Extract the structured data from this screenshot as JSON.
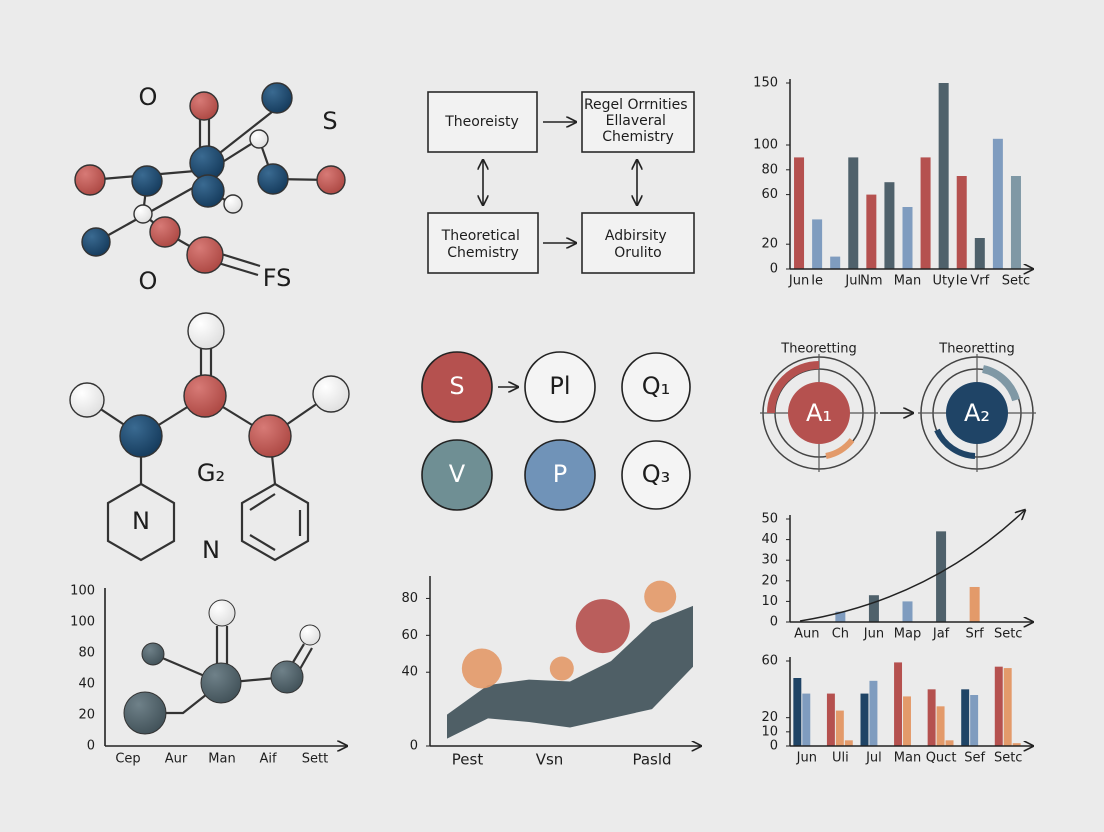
{
  "molecule_top": {
    "labels": [
      "O",
      "S",
      "O",
      "FS"
    ]
  },
  "flowchart": {
    "boxes": [
      {
        "lines": [
          "Theoreisty"
        ]
      },
      {
        "lines": [
          "Regel Orrnities",
          "Ellaveral",
          "Chemistry"
        ]
      },
      {
        "lines": [
          "Theoretical",
          "Chemistry"
        ]
      },
      {
        "lines": [
          "Adbirsity",
          "Orulito"
        ]
      }
    ]
  },
  "molecule_middle": {
    "labels": [
      "G₂",
      "N",
      "N"
    ]
  },
  "circles": {
    "labels": [
      "S",
      "Pl",
      "Q₁",
      "V",
      "P",
      "Q₃"
    ]
  },
  "orbits": {
    "titles": [
      "Theoretting",
      "Theoretting"
    ],
    "labels": [
      "A₁",
      "A₂"
    ]
  },
  "axis_diagram": {
    "y_labels": [
      "100",
      "100",
      "80",
      "40",
      "20",
      "0"
    ],
    "x_labels": [
      "Cep",
      "Aur",
      "Man",
      "Aif",
      "Sett"
    ]
  },
  "chart_data": [
    {
      "type": "bar",
      "categories": [
        "Jun",
        "Ie",
        null,
        "Jul",
        "Nm",
        null,
        "Man",
        null,
        "Uty",
        "Ie",
        "Vrf",
        null,
        "Setc"
      ],
      "values": [
        90,
        40,
        10,
        90,
        60,
        70,
        50,
        90,
        150,
        75,
        25,
        105,
        75
      ],
      "colors": [
        "#b5514f",
        "#7f9cbf",
        "#7f9cbf",
        "#4f616b",
        "#b5514f",
        "#4f616b",
        "#7f9cbf",
        "#b5514f",
        "#4f616b",
        "#b5514f",
        "#4f616b",
        "#7f9cbf",
        "#7f98a5"
      ],
      "ylim": [
        0,
        150
      ],
      "yticks": [
        0,
        20,
        60,
        80,
        100,
        150
      ]
    },
    {
      "type": "bar",
      "categories": [
        "Aun",
        "Ch",
        "Jun",
        "Map",
        "Jaf",
        "Srf",
        "Setc"
      ],
      "values": [
        null,
        5,
        13,
        10,
        44,
        17,
        null
      ],
      "colors": [
        "#7f9cbf",
        "#7f9cbf",
        "#4f616b",
        "#7f9cbf",
        "#4f616b",
        "#e39a6a",
        "#7f9cbf"
      ],
      "ylim": [
        0,
        50
      ],
      "yticks": [
        0,
        10,
        20,
        30,
        40,
        50
      ]
    },
    {
      "type": "bar",
      "categories": [
        "Jun",
        "Uli",
        "Jul",
        "Man",
        "Quct",
        "Sef",
        "Setc"
      ],
      "series": [
        {
          "values": [
            48,
            37,
            37,
            59,
            40,
            40,
            56
          ],
          "colors": [
            "#1f4466",
            "#b5514f",
            "#1f4466",
            "#b5514f",
            "#b5514f",
            "#1f4466",
            "#b5514f"
          ]
        },
        {
          "values": [
            37,
            25,
            46,
            35,
            28,
            36,
            55
          ],
          "colors": [
            "#7f9cbf",
            "#e39a6a",
            "#7f9cbf",
            "#e39a6a",
            "#e39a6a",
            "#7f9cbf",
            "#e39a6a"
          ]
        },
        {
          "values": [
            null,
            4,
            null,
            null,
            4,
            null,
            2
          ],
          "colors": [
            "#e39a6a",
            "#e39a6a",
            "#e39a6a",
            "#e39a6a",
            "#e39a6a",
            "#e39a6a",
            "#e39a6a"
          ]
        }
      ],
      "ylim": [
        0,
        60
      ],
      "yticks": [
        0,
        10,
        20,
        60
      ]
    },
    {
      "type": "area",
      "x": [
        0,
        1,
        2,
        3,
        4,
        5,
        6
      ],
      "upper": [
        17,
        33,
        36,
        35,
        46,
        67,
        76
      ],
      "lower": [
        4,
        15,
        13,
        10,
        15,
        20,
        43
      ],
      "color": "#4f5f66",
      "bubbles": {
        "x": [
          0.85,
          2.8,
          3.8,
          5.2
        ],
        "y": [
          42,
          42,
          65,
          81
        ],
        "size": [
          20,
          12,
          27,
          16
        ],
        "colors": [
          "#e39a6a",
          "#e39a6a",
          "#b5514f",
          "#e39a6a"
        ]
      },
      "xlim": [
        0,
        6
      ],
      "xticks": [
        {
          "value": 0.5,
          "label": "Pest"
        },
        {
          "value": 2.5,
          "label": "Vsn"
        },
        {
          "value": 5,
          "label": "Pasld"
        }
      ],
      "ylim": [
        0,
        90
      ],
      "yticks": [
        0,
        40,
        60,
        80
      ]
    }
  ]
}
